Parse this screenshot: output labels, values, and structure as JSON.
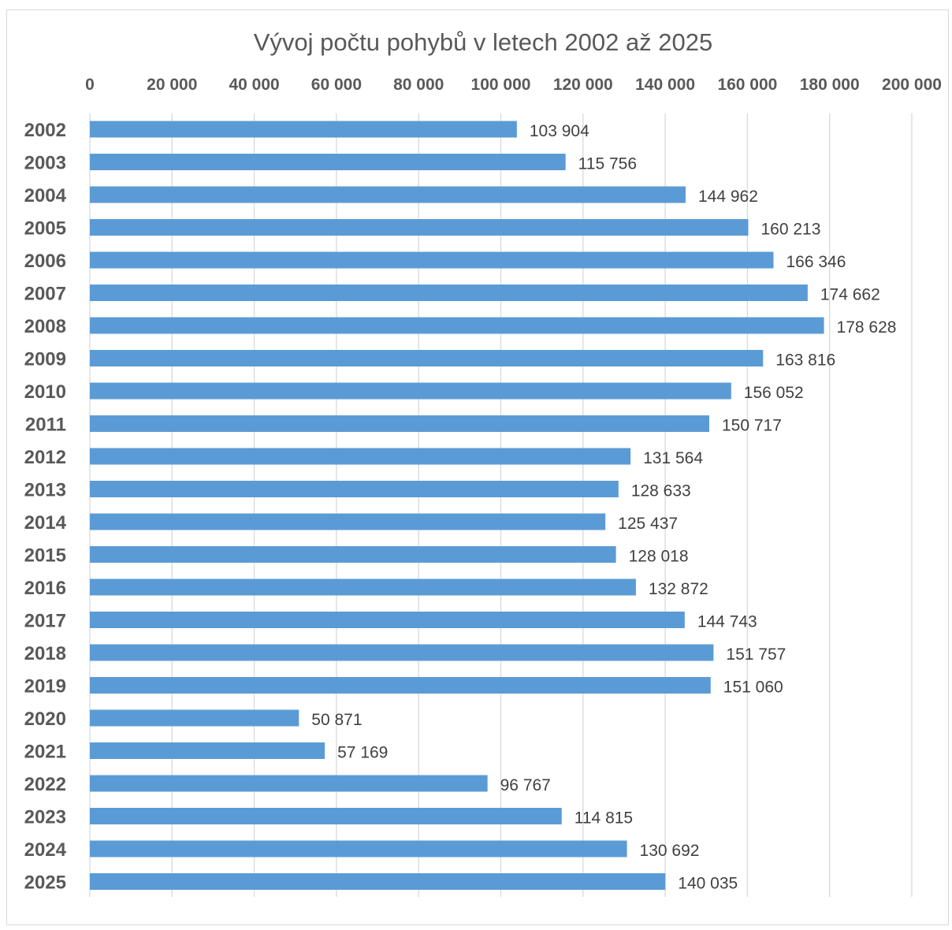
{
  "chart_data": {
    "type": "bar",
    "orientation": "horizontal",
    "title": "Vývoj počtu pohybů v letech 2002 až 2025",
    "xlim": [
      0,
      200000
    ],
    "xticks": [
      0,
      20000,
      40000,
      60000,
      80000,
      100000,
      120000,
      140000,
      160000,
      180000,
      200000
    ],
    "xtick_labels": [
      "0",
      "20 000",
      "40 000",
      "60 000",
      "80 000",
      "100 000",
      "120 000",
      "140 000",
      "160 000",
      "180 000",
      "200 000"
    ],
    "x_axis_position": "top",
    "grid": true,
    "legend": false,
    "bar_color": "#5b9bd5",
    "categories": [
      "2002",
      "2003",
      "2004",
      "2005",
      "2006",
      "2007",
      "2008",
      "2009",
      "2010",
      "2011",
      "2012",
      "2013",
      "2014",
      "2015",
      "2016",
      "2017",
      "2018",
      "2019",
      "2020",
      "2021",
      "2022",
      "2023",
      "2024",
      "2025"
    ],
    "values": [
      103904,
      115756,
      144962,
      160213,
      166346,
      174662,
      178628,
      163816,
      156052,
      150717,
      131564,
      128633,
      125437,
      128018,
      132872,
      144743,
      151757,
      151060,
      50871,
      57169,
      96767,
      114815,
      130692,
      140035
    ],
    "data_labels": [
      "103 904",
      "115 756",
      "144 962",
      "160 213",
      "166 346",
      "174 662",
      "178 628",
      "163 816",
      "156 052",
      "150 717",
      "131 564",
      "128 633",
      "125 437",
      "128 018",
      "132 872",
      "144 743",
      "151 757",
      "151 060",
      "50 871",
      "57 169",
      "96 767",
      "114 815",
      "130 692",
      "140 035"
    ]
  }
}
